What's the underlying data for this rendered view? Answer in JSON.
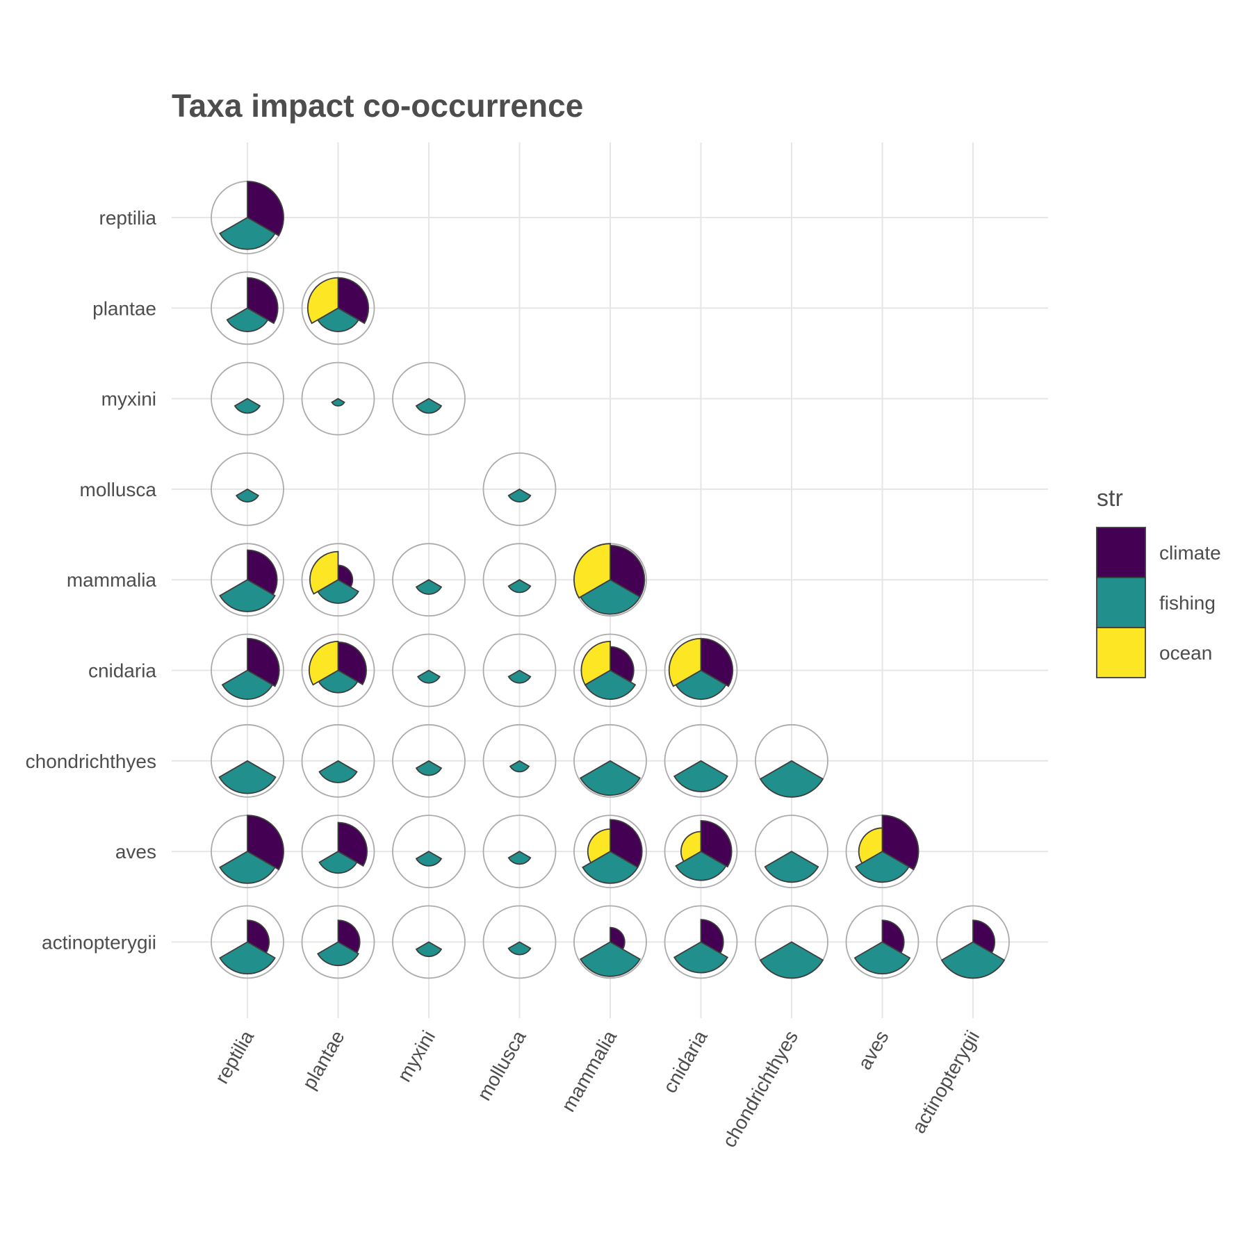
{
  "chart_data": {
    "type": "pie",
    "subtype": "co-occurrence pie matrix (lower triangle)",
    "title": "Taxa impact co-occurrence",
    "xlabel": "",
    "ylabel": "",
    "categories": [
      "reptilia",
      "plantae",
      "myxini",
      "mollusca",
      "mammalia",
      "cnidaria",
      "chondrichthyes",
      "aves",
      "actinopterygii"
    ],
    "series_names": [
      "climate",
      "fishing",
      "ocean"
    ],
    "legend": {
      "title": "str",
      "position": "right",
      "entries": [
        "climate",
        "fishing",
        "ocean"
      ]
    },
    "colors": {
      "climate": "#440154",
      "fishing": "#21908c",
      "ocean": "#fde725"
    },
    "value_scale_max": 1.0,
    "grid": true,
    "cells": [
      {
        "row": "reptilia",
        "col": "reptilia",
        "climate": 1.0,
        "fishing": 0.88,
        "ocean": 0
      },
      {
        "row": "plantae",
        "col": "reptilia",
        "climate": 0.84,
        "fishing": 0.65,
        "ocean": 0
      },
      {
        "row": "plantae",
        "col": "plantae",
        "climate": 0.84,
        "fishing": 0.65,
        "ocean": 0.84
      },
      {
        "row": "myxini",
        "col": "reptilia",
        "climate": 0,
        "fishing": 0.4,
        "ocean": 0
      },
      {
        "row": "myxini",
        "col": "plantae",
        "climate": 0,
        "fishing": 0.2,
        "ocean": 0
      },
      {
        "row": "myxini",
        "col": "myxini",
        "climate": 0,
        "fishing": 0.4,
        "ocean": 0
      },
      {
        "row": "mollusca",
        "col": "reptilia",
        "climate": 0,
        "fishing": 0.35,
        "ocean": 0
      },
      {
        "row": "mollusca",
        "col": "mollusca",
        "climate": 0,
        "fishing": 0.35,
        "ocean": 0
      },
      {
        "row": "mammalia",
        "col": "reptilia",
        "climate": 0.82,
        "fishing": 0.88,
        "ocean": 0
      },
      {
        "row": "mammalia",
        "col": "plantae",
        "climate": 0.4,
        "fishing": 0.65,
        "ocean": 0.78
      },
      {
        "row": "mammalia",
        "col": "myxini",
        "climate": 0,
        "fishing": 0.4,
        "ocean": 0
      },
      {
        "row": "mammalia",
        "col": "mollusca",
        "climate": 0,
        "fishing": 0.35,
        "ocean": 0
      },
      {
        "row": "mammalia",
        "col": "mammalia",
        "climate": 0.95,
        "fishing": 0.95,
        "ocean": 1.0
      },
      {
        "row": "cnidaria",
        "col": "reptilia",
        "climate": 0.88,
        "fishing": 0.8,
        "ocean": 0
      },
      {
        "row": "cnidaria",
        "col": "plantae",
        "climate": 0.78,
        "fishing": 0.62,
        "ocean": 0.8
      },
      {
        "row": "cnidaria",
        "col": "myxini",
        "climate": 0,
        "fishing": 0.35,
        "ocean": 0
      },
      {
        "row": "cnidaria",
        "col": "mollusca",
        "climate": 0,
        "fishing": 0.35,
        "ocean": 0
      },
      {
        "row": "cnidaria",
        "col": "mammalia",
        "climate": 0.65,
        "fishing": 0.8,
        "ocean": 0.8
      },
      {
        "row": "cnidaria",
        "col": "cnidaria",
        "climate": 0.88,
        "fishing": 0.8,
        "ocean": 0.88
      },
      {
        "row": "chondrichthyes",
        "col": "reptilia",
        "climate": 0,
        "fishing": 0.9,
        "ocean": 0
      },
      {
        "row": "chondrichthyes",
        "col": "plantae",
        "climate": 0,
        "fishing": 0.6,
        "ocean": 0
      },
      {
        "row": "chondrichthyes",
        "col": "myxini",
        "climate": 0,
        "fishing": 0.4,
        "ocean": 0
      },
      {
        "row": "chondrichthyes",
        "col": "mollusca",
        "climate": 0,
        "fishing": 0.3,
        "ocean": 0
      },
      {
        "row": "chondrichthyes",
        "col": "mammalia",
        "climate": 0,
        "fishing": 0.95,
        "ocean": 0
      },
      {
        "row": "chondrichthyes",
        "col": "cnidaria",
        "climate": 0,
        "fishing": 0.85,
        "ocean": 0
      },
      {
        "row": "chondrichthyes",
        "col": "chondrichthyes",
        "climate": 0,
        "fishing": 1.0,
        "ocean": 0
      },
      {
        "row": "aves",
        "col": "reptilia",
        "climate": 1.0,
        "fishing": 0.88,
        "ocean": 0
      },
      {
        "row": "aves",
        "col": "plantae",
        "climate": 0.8,
        "fishing": 0.6,
        "ocean": 0
      },
      {
        "row": "aves",
        "col": "myxini",
        "climate": 0,
        "fishing": 0.4,
        "ocean": 0
      },
      {
        "row": "aves",
        "col": "mollusca",
        "climate": 0,
        "fishing": 0.35,
        "ocean": 0
      },
      {
        "row": "aves",
        "col": "mammalia",
        "climate": 0.88,
        "fishing": 0.88,
        "ocean": 0.62
      },
      {
        "row": "aves",
        "col": "cnidaria",
        "climate": 0.85,
        "fishing": 0.8,
        "ocean": 0.55
      },
      {
        "row": "aves",
        "col": "chondrichthyes",
        "climate": 0,
        "fishing": 0.85,
        "ocean": 0
      },
      {
        "row": "aves",
        "col": "aves",
        "climate": 1.0,
        "fishing": 0.85,
        "ocean": 0.65
      },
      {
        "row": "actinopterygii",
        "col": "reptilia",
        "climate": 0.6,
        "fishing": 0.88,
        "ocean": 0
      },
      {
        "row": "actinopterygii",
        "col": "plantae",
        "climate": 0.6,
        "fishing": 0.65,
        "ocean": 0
      },
      {
        "row": "actinopterygii",
        "col": "myxini",
        "climate": 0,
        "fishing": 0.4,
        "ocean": 0
      },
      {
        "row": "actinopterygii",
        "col": "mollusca",
        "climate": 0,
        "fishing": 0.35,
        "ocean": 0
      },
      {
        "row": "actinopterygii",
        "col": "mammalia",
        "climate": 0.4,
        "fishing": 0.95,
        "ocean": 0
      },
      {
        "row": "actinopterygii",
        "col": "cnidaria",
        "climate": 0.62,
        "fishing": 0.85,
        "ocean": 0
      },
      {
        "row": "actinopterygii",
        "col": "chondrichthyes",
        "climate": 0,
        "fishing": 1.0,
        "ocean": 0
      },
      {
        "row": "actinopterygii",
        "col": "aves",
        "climate": 0.6,
        "fishing": 0.88,
        "ocean": 0
      },
      {
        "row": "actinopterygii",
        "col": "actinopterygii",
        "climate": 0.6,
        "fishing": 1.0,
        "ocean": 0
      }
    ]
  }
}
